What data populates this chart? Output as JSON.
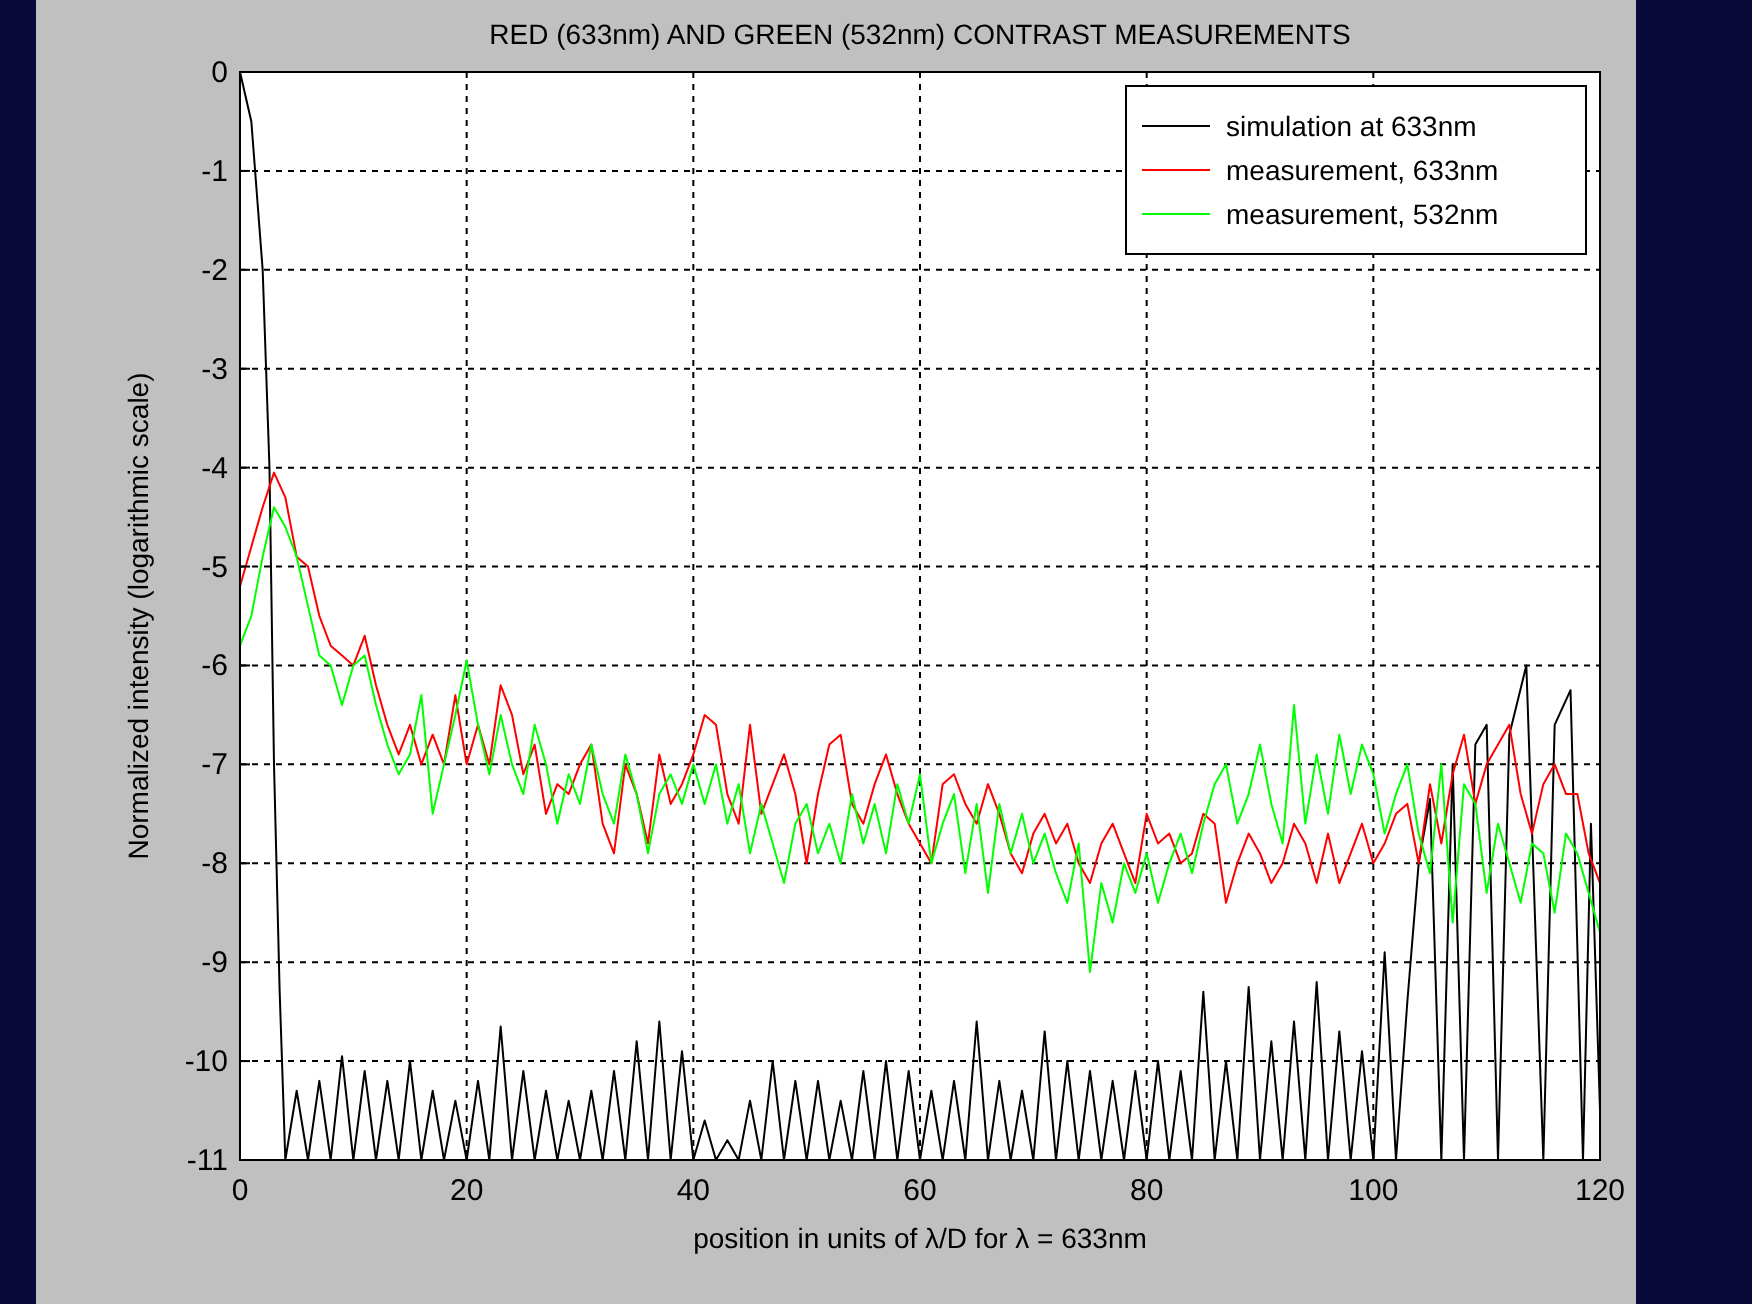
{
  "chart_data": {
    "type": "line",
    "title": "RED (633nm) AND GREEN (532nm) CONTRAST MEASUREMENTS",
    "xlabel": "position in units of λ/D for λ = 633nm",
    "ylabel": "Normalized intensity (logarithmic scale)",
    "xlim": [
      0,
      120
    ],
    "xticks": [
      0,
      20,
      40,
      60,
      80,
      100,
      120
    ],
    "ylim": [
      -11,
      0
    ],
    "yticks": [
      -11,
      -10,
      -9,
      -8,
      -7,
      -6,
      -5,
      -4,
      -3,
      -2,
      -1,
      0
    ],
    "grid": true,
    "legend": "top right",
    "series": [
      {
        "name": "simulation at 633nm",
        "color": "#000000",
        "x": [
          0,
          1,
          2,
          2.6,
          3,
          3.5,
          4,
          5,
          6,
          7,
          8,
          9,
          10,
          11,
          12,
          13,
          14,
          15,
          16,
          17,
          18,
          19,
          20,
          21,
          22,
          23,
          24,
          25,
          26,
          27,
          28,
          29,
          30,
          31,
          32,
          33,
          34,
          35,
          36,
          37,
          38,
          39,
          40,
          41,
          42,
          43,
          44,
          45,
          46,
          47,
          48,
          49,
          50,
          51,
          52,
          53,
          54,
          55,
          56,
          57,
          58,
          59,
          60,
          61,
          62,
          63,
          64,
          65,
          66,
          67,
          68,
          69,
          70,
          71,
          72,
          73,
          74,
          75,
          76,
          77,
          78,
          79,
          80,
          81,
          82,
          83,
          84,
          85,
          86,
          87,
          88,
          89,
          90,
          91,
          92,
          93,
          94,
          95,
          96,
          97,
          98,
          99,
          100,
          101,
          102,
          103,
          104,
          105,
          106,
          107,
          108,
          109,
          110,
          111,
          112,
          113.5,
          115,
          116,
          117.4,
          118.5,
          119.2,
          120
        ],
        "values": [
          0,
          -0.5,
          -2,
          -4,
          -7,
          -9.3,
          -11,
          -10.3,
          -11,
          -10.2,
          -11,
          -9.95,
          -11,
          -10.1,
          -11,
          -10.2,
          -11,
          -10.0,
          -11,
          -10.3,
          -11,
          -10.4,
          -11,
          -10.2,
          -11,
          -9.65,
          -11,
          -10.1,
          -11,
          -10.3,
          -11,
          -10.4,
          -11,
          -10.3,
          -11,
          -10.1,
          -11,
          -9.8,
          -11,
          -9.6,
          -11,
          -9.9,
          -11,
          -10.6,
          -11,
          -10.8,
          -11,
          -10.4,
          -11,
          -10.0,
          -11,
          -10.2,
          -11,
          -10.2,
          -11,
          -10.4,
          -11,
          -10.1,
          -11,
          -10.0,
          -11,
          -10.1,
          -11,
          -10.3,
          -11,
          -10.2,
          -11,
          -9.6,
          -11,
          -10.2,
          -11,
          -10.3,
          -11,
          -9.7,
          -11,
          -10.0,
          -11,
          -10.1,
          -11,
          -10.2,
          -11,
          -10.1,
          -11,
          -10.0,
          -11,
          -10.1,
          -11,
          -9.3,
          -11,
          -10.0,
          -11,
          -9.25,
          -11,
          -9.8,
          -11,
          -9.6,
          -11,
          -9.2,
          -11,
          -9.7,
          -11,
          -9.9,
          -11,
          -8.9,
          -11,
          -9.4,
          -8.0,
          -7.35,
          -11,
          -7.0,
          -11,
          -6.8,
          -6.6,
          -11,
          -6.7,
          -6.0,
          -11,
          -6.6,
          -6.25,
          -11,
          -7.6,
          -10.5
        ]
      },
      {
        "name": "measurement, 633nm",
        "color": "#ff0000",
        "x": [
          0,
          1,
          2,
          3,
          4,
          5,
          6,
          7,
          8,
          9,
          10,
          11,
          12,
          13,
          14,
          15,
          16,
          17,
          18,
          19,
          20,
          21,
          22,
          23,
          24,
          25,
          26,
          27,
          28,
          29,
          30,
          31,
          32,
          33,
          34,
          35,
          36,
          37,
          38,
          39,
          40,
          41,
          42,
          43,
          44,
          45,
          46,
          47,
          48,
          49,
          50,
          51,
          52,
          53,
          54,
          55,
          56,
          57,
          58,
          59,
          60,
          61,
          62,
          63,
          64,
          65,
          66,
          67,
          68,
          69,
          70,
          71,
          72,
          73,
          74,
          75,
          76,
          77,
          78,
          79,
          80,
          81,
          82,
          83,
          84,
          85,
          86,
          87,
          88,
          89,
          90,
          91,
          92,
          93,
          94,
          95,
          96,
          97,
          98,
          99,
          100,
          101,
          102,
          103,
          104,
          105,
          106,
          107,
          108,
          109,
          110,
          111,
          112,
          113,
          114,
          115,
          116,
          117,
          118,
          119,
          120
        ],
        "values": [
          -5.2,
          -4.8,
          -4.4,
          -4.05,
          -4.3,
          -4.9,
          -5.0,
          -5.5,
          -5.8,
          -5.9,
          -6.0,
          -5.7,
          -6.2,
          -6.6,
          -6.9,
          -6.6,
          -7.0,
          -6.7,
          -7.0,
          -6.3,
          -7.0,
          -6.6,
          -7.0,
          -6.2,
          -6.5,
          -7.1,
          -6.8,
          -7.5,
          -7.2,
          -7.3,
          -7.0,
          -6.8,
          -7.6,
          -7.9,
          -7.0,
          -7.3,
          -7.8,
          -6.9,
          -7.4,
          -7.2,
          -6.9,
          -6.5,
          -6.6,
          -7.3,
          -7.6,
          -6.6,
          -7.5,
          -7.2,
          -6.9,
          -7.3,
          -8.0,
          -7.3,
          -6.8,
          -6.7,
          -7.4,
          -7.6,
          -7.2,
          -6.9,
          -7.3,
          -7.6,
          -7.8,
          -8.0,
          -7.2,
          -7.1,
          -7.4,
          -7.6,
          -7.2,
          -7.5,
          -7.9,
          -8.1,
          -7.7,
          -7.5,
          -7.8,
          -7.6,
          -8.0,
          -8.2,
          -7.8,
          -7.6,
          -7.9,
          -8.2,
          -7.5,
          -7.8,
          -7.7,
          -8.0,
          -7.9,
          -7.5,
          -7.6,
          -8.4,
          -8.0,
          -7.7,
          -7.9,
          -8.2,
          -8.0,
          -7.6,
          -7.8,
          -8.2,
          -7.7,
          -8.2,
          -7.9,
          -7.6,
          -8.0,
          -7.8,
          -7.5,
          -7.4,
          -8.0,
          -7.2,
          -7.8,
          -7.1,
          -6.7,
          -7.4,
          -7.0,
          -6.8,
          -6.6,
          -7.3,
          -7.7,
          -7.2,
          -7.0,
          -7.3,
          -7.3,
          -7.9,
          -8.2
        ]
      },
      {
        "name": "measurement, 532nm",
        "color": "#00ff00",
        "x": [
          0,
          1,
          2,
          3,
          4,
          5,
          6,
          7,
          8,
          9,
          10,
          11,
          12,
          13,
          14,
          15,
          16,
          17,
          18,
          19,
          20,
          21,
          22,
          23,
          24,
          25,
          26,
          27,
          28,
          29,
          30,
          31,
          32,
          33,
          34,
          35,
          36,
          37,
          38,
          39,
          40,
          41,
          42,
          43,
          44,
          45,
          46,
          47,
          48,
          49,
          50,
          51,
          52,
          53,
          54,
          55,
          56,
          57,
          58,
          59,
          60,
          61,
          62,
          63,
          64,
          65,
          66,
          67,
          68,
          69,
          70,
          71,
          72,
          73,
          74,
          75,
          76,
          77,
          78,
          79,
          80,
          81,
          82,
          83,
          84,
          85,
          86,
          87,
          88,
          89,
          90,
          91,
          92,
          93,
          94,
          95,
          96,
          97,
          98,
          99,
          100,
          101,
          102,
          103,
          104,
          105,
          106,
          107,
          108,
          109,
          110,
          111,
          112,
          113,
          114,
          115,
          116,
          117,
          118,
          119,
          120
        ],
        "values": [
          -5.8,
          -5.5,
          -4.9,
          -4.4,
          -4.6,
          -4.9,
          -5.4,
          -5.9,
          -6.0,
          -6.4,
          -6.0,
          -5.9,
          -6.4,
          -6.8,
          -7.1,
          -6.9,
          -6.3,
          -7.5,
          -7.0,
          -6.5,
          -5.95,
          -6.6,
          -7.1,
          -6.5,
          -7.0,
          -7.3,
          -6.6,
          -7.0,
          -7.6,
          -7.1,
          -7.4,
          -6.8,
          -7.3,
          -7.6,
          -6.9,
          -7.3,
          -7.9,
          -7.3,
          -7.1,
          -7.4,
          -7.0,
          -7.4,
          -7.0,
          -7.6,
          -7.2,
          -7.9,
          -7.4,
          -7.8,
          -8.2,
          -7.6,
          -7.4,
          -7.9,
          -7.6,
          -8.0,
          -7.3,
          -7.8,
          -7.4,
          -7.9,
          -7.2,
          -7.6,
          -7.1,
          -8.0,
          -7.6,
          -7.3,
          -8.1,
          -7.4,
          -8.3,
          -7.4,
          -7.9,
          -7.5,
          -8.0,
          -7.7,
          -8.1,
          -8.4,
          -7.8,
          -9.1,
          -8.2,
          -8.6,
          -8.0,
          -8.3,
          -7.9,
          -8.4,
          -8.0,
          -7.7,
          -8.1,
          -7.6,
          -7.2,
          -7.0,
          -7.6,
          -7.3,
          -6.8,
          -7.4,
          -7.8,
          -6.4,
          -7.6,
          -6.9,
          -7.5,
          -6.7,
          -7.3,
          -6.8,
          -7.1,
          -7.7,
          -7.3,
          -7.0,
          -7.7,
          -8.1,
          -7.0,
          -8.6,
          -7.2,
          -7.4,
          -8.3,
          -7.6,
          -8.0,
          -8.4,
          -7.8,
          -7.9,
          -8.5,
          -7.7,
          -7.9,
          -8.3,
          -8.7
        ]
      }
    ]
  }
}
